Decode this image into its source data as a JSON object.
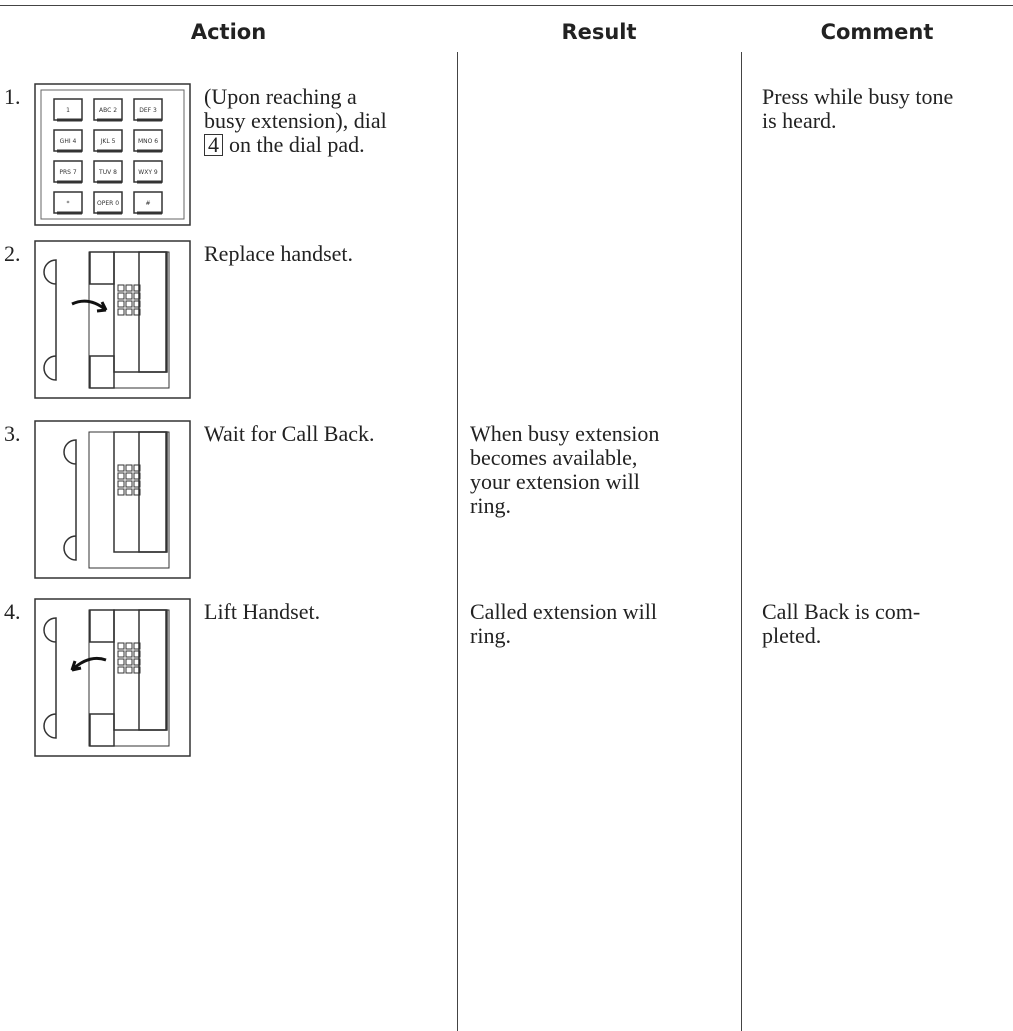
{
  "header": {
    "columns": [
      "Action",
      "Result",
      "Comment"
    ]
  },
  "keypad": [
    "1",
    "ABC 2",
    "DEF 3",
    "GHI 4",
    "JKL 5",
    "MNO 6",
    "PRS 7",
    "TUV 8",
    "WXY 9",
    "*",
    "OPER 0",
    "#"
  ],
  "rows": [
    {
      "number": "1.",
      "action": {
        "lines": [
          "(Upon reaching a",
          "busy extension), dial"
        ],
        "key": "4",
        "key_suffix": "on the dial pad."
      },
      "result": [],
      "comment": [
        "Press while busy tone",
        "is heard."
      ]
    },
    {
      "number": "2.",
      "action": {
        "lines": [
          "Replace handset."
        ]
      },
      "result": [],
      "comment": []
    },
    {
      "number": "3.",
      "action": {
        "lines": [
          "Wait for Call Back."
        ]
      },
      "result": [
        "When busy extension",
        "becomes available,",
        "your extension will",
        "ring."
      ],
      "comment": []
    },
    {
      "number": "4.",
      "action": {
        "lines": [
          "Lift Handset."
        ]
      },
      "result": [
        "Called extension will",
        "ring."
      ],
      "comment": [
        "Call Back is com-",
        "pleted."
      ]
    }
  ]
}
